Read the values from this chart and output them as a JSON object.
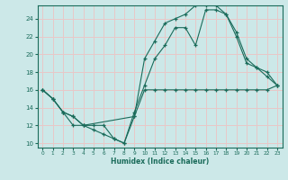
{
  "xlabel": "Humidex (Indice chaleur)",
  "bg_color": "#cce8e8",
  "line_color": "#1a6b5a",
  "grid_color": "#e8c8c8",
  "xlim": [
    -0.5,
    23.5
  ],
  "ylim": [
    9.5,
    25.5
  ],
  "xticks": [
    0,
    1,
    2,
    3,
    4,
    5,
    6,
    7,
    8,
    9,
    10,
    11,
    12,
    13,
    14,
    15,
    16,
    17,
    18,
    19,
    20,
    21,
    22,
    23
  ],
  "yticks": [
    10,
    12,
    14,
    16,
    18,
    20,
    22,
    24
  ],
  "lines": [
    {
      "x": [
        0,
        1,
        2,
        3,
        4,
        5,
        6,
        7,
        8,
        9,
        10,
        11,
        12,
        13,
        14,
        15,
        16,
        17,
        18,
        19,
        20,
        21,
        22,
        23
      ],
      "y": [
        16,
        15,
        13.5,
        13,
        12,
        12,
        12,
        10.5,
        10,
        13,
        16,
        16,
        16,
        16,
        16,
        16,
        16,
        16,
        16,
        16,
        16,
        16,
        16,
        16.5
      ]
    },
    {
      "x": [
        0,
        1,
        2,
        3,
        4,
        9,
        10,
        11,
        12,
        13,
        14,
        15,
        16,
        17,
        18,
        19,
        20,
        21,
        22,
        23
      ],
      "y": [
        16,
        15,
        13.5,
        13,
        12,
        13,
        19.5,
        21.5,
        23.5,
        24,
        24.5,
        25.5,
        25.5,
        25.5,
        24.5,
        22.5,
        19.5,
        18.5,
        18,
        16.5
      ]
    },
    {
      "x": [
        0,
        1,
        2,
        3,
        4,
        5,
        6,
        7,
        8,
        9,
        10,
        11,
        12,
        13,
        14,
        15,
        16,
        17,
        18,
        19,
        20,
        21,
        22,
        23
      ],
      "y": [
        16,
        15,
        13.5,
        12,
        12,
        11.5,
        11,
        10.5,
        10,
        13.5,
        16.5,
        19.5,
        21,
        23,
        23,
        21,
        25,
        25,
        24.5,
        22,
        19,
        18.5,
        17.5,
        16.5
      ]
    }
  ]
}
